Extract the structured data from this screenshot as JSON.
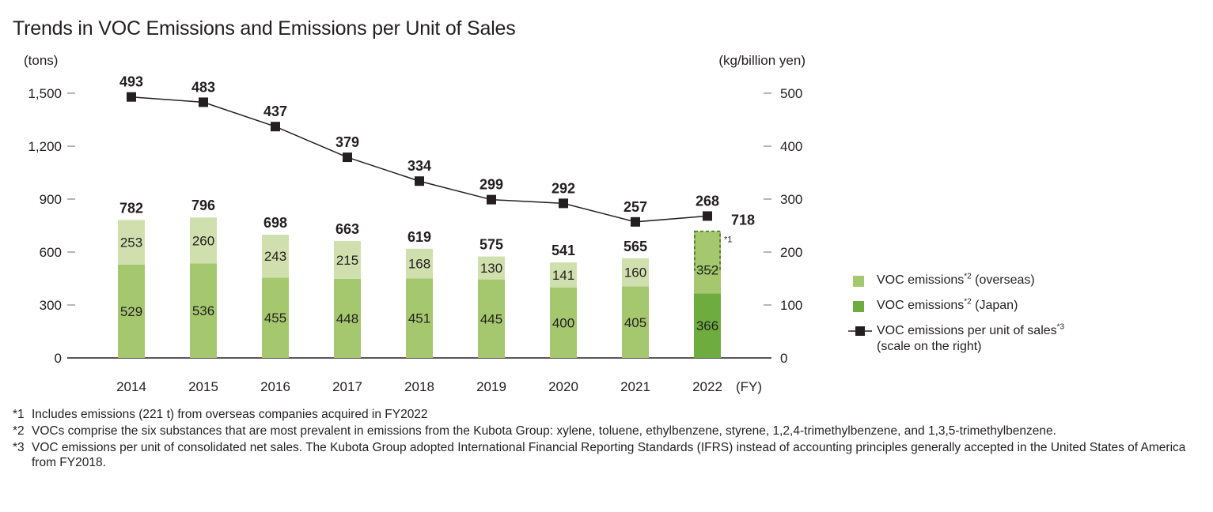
{
  "title": "Trends in VOC Emissions and Emissions per Unit of Sales",
  "chart_data": {
    "type": "bar",
    "stacked": true,
    "categories": [
      "2014",
      "2015",
      "2016",
      "2017",
      "2018",
      "2019",
      "2020",
      "2021",
      "2022"
    ],
    "x_unit": "(FY)",
    "y_left_label": "(tons)",
    "y_right_label": "(kg/billion yen)",
    "y_left_ticks": [
      "0",
      "300",
      "600",
      "900",
      "1,200",
      "1,500"
    ],
    "y_right_ticks": [
      "0",
      "100",
      "200",
      "300",
      "400",
      "500"
    ],
    "ylim_left": [
      0,
      1500
    ],
    "ylim_right": [
      0,
      500
    ],
    "series": [
      {
        "name": "VOC emissions*2 (Japan)",
        "values": [
          529,
          536,
          455,
          448,
          451,
          445,
          400,
          405,
          366
        ],
        "color_default": "#a5c86e",
        "color_last": "#6fac3f",
        "axis": "left"
      },
      {
        "name": "VOC emissions*2 (overseas)",
        "values": [
          253,
          260,
          243,
          215,
          168,
          130,
          141,
          160,
          352
        ],
        "color_default": "#cfe0ae",
        "color_last": "#a5c86e",
        "axis": "left"
      },
      {
        "name": "VOC emissions per unit of sales*3 (scale on the right)",
        "type": "line",
        "values": [
          493,
          483,
          437,
          379,
          334,
          299,
          292,
          257,
          268
        ],
        "color": "#231f20",
        "axis": "right"
      }
    ],
    "totals": [
      782,
      796,
      698,
      663,
      619,
      575,
      541,
      565,
      718
    ],
    "annotation": {
      "category": "2022",
      "text": "*1",
      "box_value_range": [
        718,
        497
      ],
      "description_ref": "*1"
    },
    "grid": false,
    "legend_position": "right"
  },
  "legend": {
    "overseas": {
      "text": "VOC emissions",
      "sup": "*2",
      "after": " (overseas)",
      "color": "#a5c86e"
    },
    "japan": {
      "text": "VOC emissions",
      "sup": "*2",
      "after": " (Japan)",
      "color": "#6fac3f"
    },
    "line": {
      "text": "VOC emissions per unit of sales",
      "sup": "*3",
      "sub": "(scale on the right)"
    }
  },
  "footnotes": [
    {
      "mark": "*1",
      "text": "Includes emissions (221 t) from overseas companies acquired in FY2022"
    },
    {
      "mark": "*2",
      "text": "VOCs comprise the six substances that are most prevalent in emissions from the Kubota Group: xylene, toluene, ethylbenzene, styrene, 1,2,4-trimethylbenzene, and 1,3,5-trimethylbenzene."
    },
    {
      "mark": "*3",
      "text": "VOC emissions per unit of consolidated net sales. The Kubota Group adopted International Financial Reporting Standards (IFRS) instead of accounting principles generally accepted in the United States of America from FY2018."
    }
  ]
}
